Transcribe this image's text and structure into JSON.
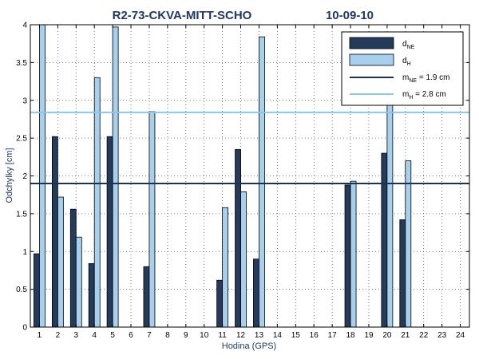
{
  "chart_data": {
    "type": "bar",
    "title": "R2-73-CKVA-MITT-SCHO",
    "date": "10-09-10",
    "xlabel": "Hodina (GPS)",
    "ylabel": "Odchylky [cm]",
    "categories": [
      "1",
      "2",
      "3",
      "4",
      "5",
      "6",
      "7",
      "8",
      "9",
      "10",
      "11",
      "12",
      "13",
      "14",
      "15",
      "16",
      "17",
      "18",
      "19",
      "20",
      "21",
      "22",
      "23",
      "24"
    ],
    "ylim": [
      0,
      4
    ],
    "yticks": [
      "0",
      "0.5",
      "1",
      "1.5",
      "2",
      "2.5",
      "3",
      "3.5",
      "4"
    ],
    "grid": "dotted",
    "legend_position": "top-right",
    "series": [
      {
        "key": "dNE",
        "legend_main": "d",
        "legend_sub": "NE",
        "color": "#243b5c",
        "values": [
          0.97,
          2.52,
          1.56,
          0.84,
          2.52,
          null,
          0.8,
          null,
          null,
          null,
          0.62,
          2.35,
          0.9,
          null,
          null,
          null,
          null,
          1.88,
          null,
          2.3,
          1.42,
          null,
          null,
          null
        ]
      },
      {
        "key": "dH",
        "legend_main": "d",
        "legend_sub": "H",
        "color": "#a6d0ee",
        "values": [
          4.0,
          1.72,
          1.19,
          3.3,
          3.97,
          null,
          2.85,
          null,
          null,
          null,
          1.58,
          1.79,
          3.84,
          null,
          null,
          null,
          null,
          1.93,
          null,
          3.0,
          2.2,
          null,
          null,
          null
        ]
      }
    ],
    "reference_lines": [
      {
        "key": "mNE",
        "legend_main": "m",
        "legend_sub": "NE",
        "legend_rest": " = 1.9 cm",
        "value": 1.9,
        "color": "#1c3254"
      },
      {
        "key": "mH",
        "legend_main": "m",
        "legend_sub": "H",
        "legend_rest": "  = 2.8 cm",
        "value": 2.84,
        "color": "#8cc6e8"
      }
    ]
  }
}
